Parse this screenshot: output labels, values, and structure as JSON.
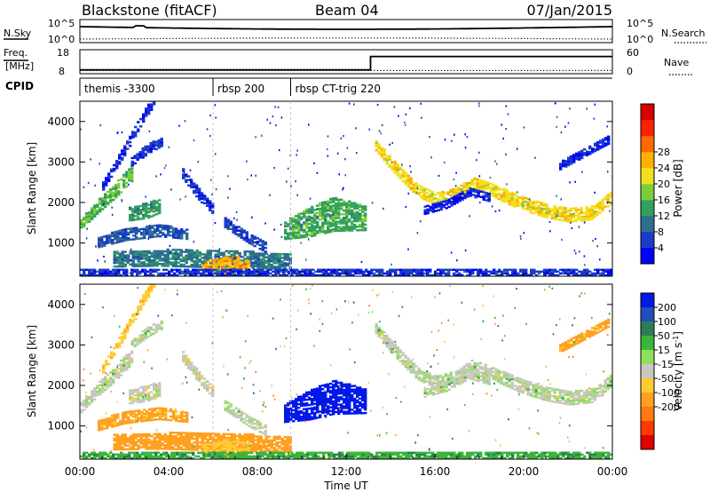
{
  "header": {
    "station": "Blackstone (fitACF)",
    "beam": "Beam 04",
    "date": "07/Jan/2015"
  },
  "noise_panel": {
    "left_label": "N.Sky",
    "right_label": "N.Search",
    "left_ticks": [
      "10^5",
      "10^0"
    ],
    "right_ticks": [
      "10^5",
      "10^0"
    ]
  },
  "freq_panel": {
    "left_label_1": "Freq.",
    "left_label_2": "[MHz]",
    "right_label": "Nave",
    "left_ticks": [
      "18",
      "8"
    ],
    "right_ticks": [
      "60",
      "0"
    ],
    "freq_steps": [
      {
        "t": 0,
        "v": 9.6
      },
      {
        "t": 13.1,
        "v": 9.6
      },
      {
        "t": 13.1,
        "v": 15.2
      },
      {
        "t": 24,
        "v": 15.2
      }
    ],
    "nave_level": 8
  },
  "cpid_panel": {
    "label": "CPID",
    "segments": [
      {
        "start": 0,
        "text": "themis -3300"
      },
      {
        "start": 6.0,
        "text": "rbsp 200"
      },
      {
        "start": 9.5,
        "text": "rbsp CT-trig 220"
      }
    ]
  },
  "x_axis": {
    "label": "Time UT",
    "range": [
      0,
      24
    ],
    "ticks": [
      {
        "v": 0,
        "label": "00:00"
      },
      {
        "v": 4,
        "label": "04:00"
      },
      {
        "v": 8,
        "label": "08:00"
      },
      {
        "v": 12,
        "label": "12:00"
      },
      {
        "v": 16,
        "label": "16:00"
      },
      {
        "v": 20,
        "label": "20:00"
      },
      {
        "v": 24,
        "label": "00:00"
      }
    ]
  },
  "chart_data": [
    {
      "type": "heatmap",
      "name": "power",
      "ylabel": "Slant Range [km]",
      "ylim": [
        180,
        4500
      ],
      "yticks": [
        1000,
        2000,
        3000,
        4000
      ],
      "colorbar": {
        "label": "Power [dB]",
        "labels": [
          "4",
          "8",
          "12",
          "16",
          "20",
          "24",
          "28"
        ],
        "colors": [
          "#0000ff",
          "#1a3ac8",
          "#2e6f8e",
          "#33a060",
          "#7ccd3a",
          "#f0e020",
          "#ffb000",
          "#ff6a00",
          "#ff2000",
          "#d80000"
        ]
      },
      "bands": [
        {
          "t": [
            0,
            0.8,
            1.6,
            2.3
          ],
          "r": [
            1450,
            1900,
            2300,
            2700
          ],
          "w": [
            130,
            160,
            180,
            180
          ],
          "v": 14
        },
        {
          "t": [
            1.0,
            2.0,
            2.8,
            3.3
          ],
          "r": [
            2400,
            3300,
            4100,
            4500
          ],
          "w": [
            100,
            120,
            120,
            120
          ],
          "v": 5
        },
        {
          "t": [
            0.8,
            2.0,
            3.5,
            4.8
          ],
          "r": [
            1000,
            1200,
            1300,
            1200
          ],
          "w": [
            120,
            150,
            150,
            120
          ],
          "v": 8
        },
        {
          "t": [
            2.2,
            3.0,
            3.6
          ],
          "r": [
            1700,
            1800,
            1900
          ],
          "w": [
            160,
            200,
            160
          ],
          "v": 12
        },
        {
          "t": [
            2.3,
            3.0,
            3.7
          ],
          "r": [
            3000,
            3300,
            3500
          ],
          "w": [
            100,
            120,
            100
          ],
          "v": 6
        },
        {
          "t": [
            4.6,
            5.3,
            6.0
          ],
          "r": [
            2700,
            2200,
            1800
          ],
          "w": [
            120,
            140,
            120
          ],
          "v": 6
        },
        {
          "t": [
            1.5,
            3.5,
            6.0,
            8.0,
            9.5
          ],
          "r": [
            600,
            620,
            600,
            560,
            520
          ],
          "w": [
            200,
            200,
            220,
            200,
            180
          ],
          "v": 10
        },
        {
          "t": [
            5.5,
            6.3,
            7.0,
            7.6
          ],
          "r": [
            400,
            420,
            450,
            420
          ],
          "w": [
            120,
            200,
            220,
            120
          ],
          "v": 22
        },
        {
          "t": [
            6.5,
            7.6,
            8.4
          ],
          "r": [
            1500,
            1100,
            850
          ],
          "w": [
            130,
            130,
            110
          ],
          "v": 7
        },
        {
          "t": [
            9.2,
            10.3,
            11.4,
            12.8
          ],
          "r": [
            1300,
            1500,
            1700,
            1600
          ],
          "w": [
            220,
            360,
            420,
            300
          ],
          "v": 13
        },
        {
          "t": [
            13.3,
            13.9,
            14.6,
            15.2,
            16.0,
            17.0,
            17.6,
            18.4,
            19.2,
            20.0,
            21.0,
            22.0,
            23.0,
            23.9
          ],
          "r": [
            3400,
            3000,
            2600,
            2280,
            2080,
            2220,
            2480,
            2340,
            2120,
            1940,
            1770,
            1680,
            1720,
            2100
          ],
          "w": [
            130,
            140,
            150,
            150,
            150,
            150,
            150,
            150,
            160,
            160,
            160,
            170,
            160,
            140
          ],
          "v": 19
        },
        {
          "t": [
            15.5,
            16.5,
            17.5,
            18.5
          ],
          "r": [
            1800,
            1950,
            2250,
            2100
          ],
          "w": [
            100,
            100,
            100,
            100
          ],
          "v": 5
        },
        {
          "t": [
            21.6,
            22.6,
            23.8
          ],
          "r": [
            2900,
            3200,
            3550
          ],
          "w": [
            100,
            110,
            110
          ],
          "v": 5
        },
        {
          "t": [
            0,
            4,
            8,
            12,
            16,
            20,
            24
          ],
          "r": [
            250,
            250,
            250,
            250,
            250,
            250,
            250
          ],
          "w": [
            110,
            110,
            110,
            110,
            110,
            110,
            110
          ],
          "v": 6
        }
      ]
    },
    {
      "type": "heatmap",
      "name": "velocity",
      "ylabel": "Slant Range [km]",
      "ylim": [
        180,
        4500
      ],
      "yticks": [
        1000,
        2000,
        3000,
        4000
      ],
      "colorbar": {
        "label": "Velocity [m s^-1]",
        "labels": [
          "200",
          "100",
          "50",
          "15",
          "-15",
          "-50",
          "-100",
          "-200"
        ],
        "colors": [
          "#0018e8",
          "#1f4fb8",
          "#2c7d56",
          "#3bb43b",
          "#8ee05a",
          "#c8c8c0",
          "#ffcc30",
          "#ffa020",
          "#ff7a10",
          "#ff3a00",
          "#e00000"
        ]
      },
      "bands": [
        {
          "t": [
            0,
            0.8,
            1.6,
            2.3
          ],
          "r": [
            1450,
            1900,
            2300,
            2700
          ],
          "w": [
            130,
            160,
            180,
            180
          ],
          "v": 0
        },
        {
          "t": [
            1.0,
            2.0,
            2.8,
            3.3
          ],
          "r": [
            2400,
            3300,
            4100,
            4500
          ],
          "w": [
            100,
            120,
            120,
            120
          ],
          "v": -40
        },
        {
          "t": [
            0.8,
            2.0,
            3.5,
            4.8
          ],
          "r": [
            1000,
            1200,
            1300,
            1200
          ],
          "w": [
            120,
            150,
            150,
            120
          ],
          "v": -60
        },
        {
          "t": [
            2.2,
            3.0,
            3.6
          ],
          "r": [
            1700,
            1800,
            1900
          ],
          "w": [
            160,
            200,
            160
          ],
          "v": -5
        },
        {
          "t": [
            2.3,
            3.0,
            3.7
          ],
          "r": [
            3000,
            3300,
            3500
          ],
          "w": [
            100,
            120,
            100
          ],
          "v": 0
        },
        {
          "t": [
            4.6,
            5.3,
            6.0
          ],
          "r": [
            2700,
            2200,
            1800
          ],
          "w": [
            120,
            140,
            120
          ],
          "v": -5
        },
        {
          "t": [
            1.5,
            3.5,
            6.0,
            8.0,
            9.5
          ],
          "r": [
            600,
            620,
            600,
            560,
            520
          ],
          "w": [
            200,
            200,
            220,
            200,
            180
          ],
          "v": -70
        },
        {
          "t": [
            5.5,
            6.3,
            7.0,
            7.6
          ],
          "r": [
            400,
            420,
            450,
            420
          ],
          "w": [
            120,
            200,
            220,
            120
          ],
          "v": -40
        },
        {
          "t": [
            6.5,
            7.6,
            8.4
          ],
          "r": [
            1500,
            1100,
            850
          ],
          "w": [
            130,
            130,
            110
          ],
          "v": 0
        },
        {
          "t": [
            9.2,
            10.3,
            11.4,
            12.8
          ],
          "r": [
            1300,
            1500,
            1700,
            1600
          ],
          "w": [
            220,
            360,
            420,
            300
          ],
          "v": 220
        },
        {
          "t": [
            13.3,
            13.9,
            14.6,
            15.2,
            16.0,
            17.0,
            17.6,
            18.4,
            19.2,
            20.0,
            21.0,
            22.0,
            23.0,
            23.9
          ],
          "r": [
            3400,
            3000,
            2600,
            2280,
            2080,
            2220,
            2480,
            2340,
            2120,
            1940,
            1770,
            1680,
            1720,
            2100
          ],
          "w": [
            130,
            140,
            150,
            150,
            150,
            150,
            150,
            150,
            160,
            160,
            160,
            170,
            160,
            140
          ],
          "v": 0
        },
        {
          "t": [
            15.5,
            16.5,
            17.5,
            18.5
          ],
          "r": [
            1800,
            1950,
            2250,
            2100
          ],
          "w": [
            100,
            100,
            100,
            100
          ],
          "v": 0
        },
        {
          "t": [
            21.6,
            22.6,
            23.8
          ],
          "r": [
            2900,
            3200,
            3550
          ],
          "w": [
            100,
            110,
            110
          ],
          "v": -60
        },
        {
          "t": [
            0,
            4,
            8,
            12,
            16,
            20,
            24
          ],
          "r": [
            250,
            250,
            250,
            250,
            250,
            250,
            250
          ],
          "w": [
            110,
            110,
            110,
            110,
            110,
            110,
            110
          ],
          "v": 40
        }
      ]
    }
  ]
}
